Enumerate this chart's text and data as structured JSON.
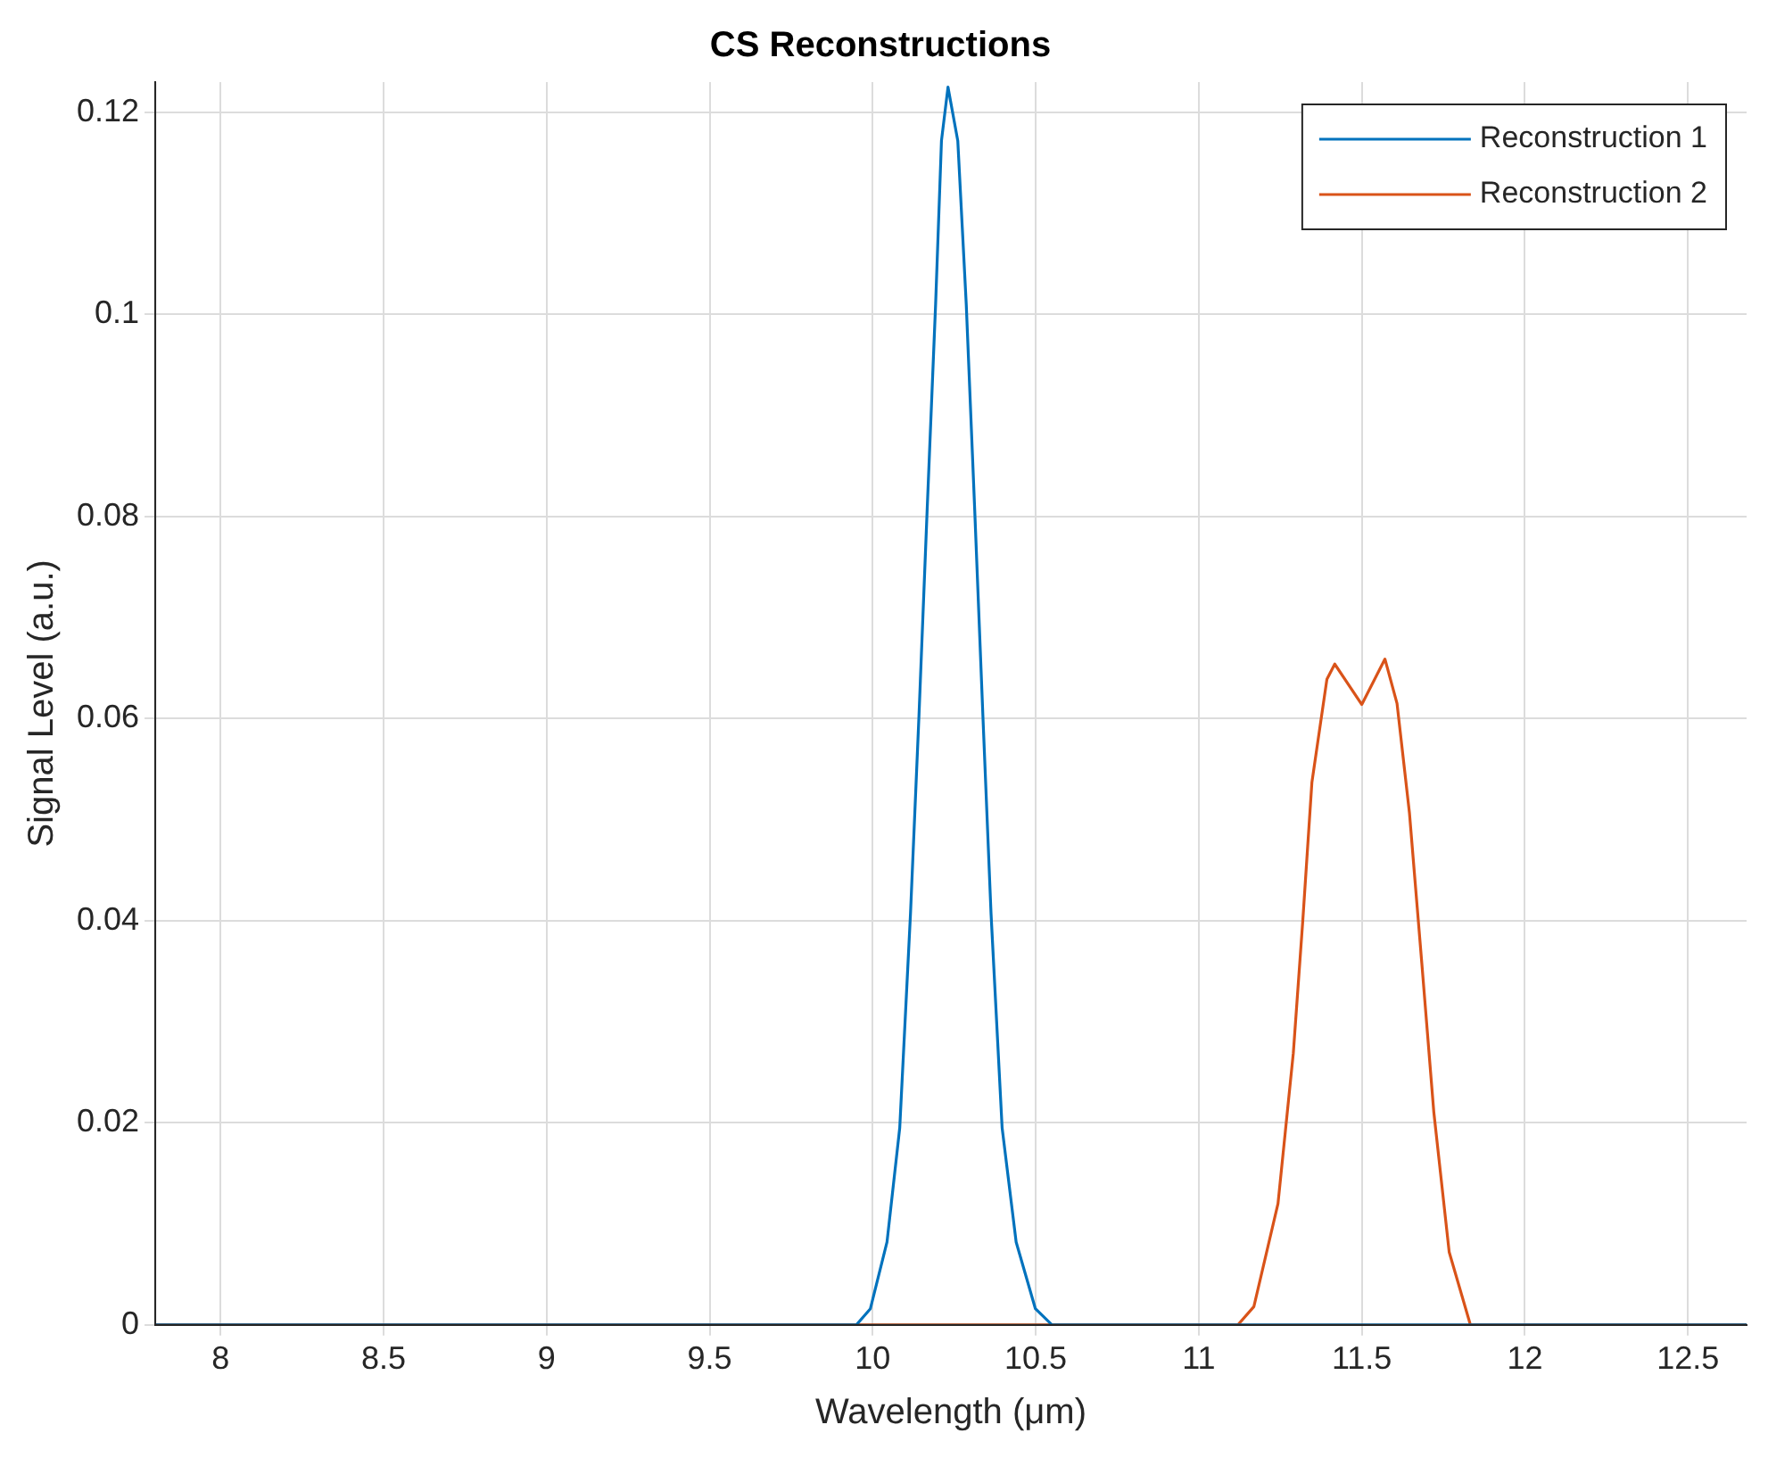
{
  "chart_data": {
    "type": "line",
    "title": "CS Reconstructions",
    "xlabel": "Wavelength (μm)",
    "ylabel": "Signal Level (a.u.)",
    "xlim": [
      7.8,
      12.68
    ],
    "xticks": [
      8,
      8.5,
      9,
      9.5,
      10,
      10.5,
      11,
      11.5,
      12,
      12.5
    ],
    "ylim": [
      0,
      0.123
    ],
    "yticks": [
      0,
      0.02,
      0.04,
      0.06,
      0.08,
      0.1,
      0.12
    ],
    "grid": true,
    "legend": "top right",
    "marker": "none",
    "line_style": "solid",
    "series": [
      {
        "name": "Reconstruction 1",
        "color": "#0072bd",
        "x": [
          7.8,
          9.95,
          9.993,
          10.044,
          10.083,
          10.116,
          10.142,
          10.167,
          10.193,
          10.211,
          10.231,
          10.261,
          10.287,
          10.313,
          10.338,
          10.363,
          10.397,
          10.44,
          10.499,
          10.55,
          12.68
        ],
        "values": [
          0,
          0,
          0.0016,
          0.0082,
          0.0195,
          0.0407,
          0.0603,
          0.0806,
          0.101,
          0.1172,
          0.1225,
          0.1172,
          0.101,
          0.0806,
          0.0603,
          0.0407,
          0.0195,
          0.0082,
          0.0016,
          0,
          0
        ]
      },
      {
        "name": "Reconstruction 2",
        "color": "#d95319",
        "x": [
          7.8,
          11.12,
          11.169,
          11.243,
          11.29,
          11.319,
          11.347,
          11.393,
          11.417,
          11.5,
          11.571,
          11.608,
          11.646,
          11.684,
          11.721,
          11.768,
          11.833,
          12.68
        ],
        "values": [
          0,
          0,
          0.0018,
          0.012,
          0.0269,
          0.04,
          0.0537,
          0.0639,
          0.0654,
          0.0614,
          0.0659,
          0.0615,
          0.0507,
          0.0358,
          0.021,
          0.0072,
          0,
          0
        ]
      }
    ]
  }
}
